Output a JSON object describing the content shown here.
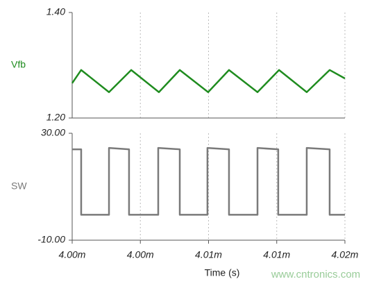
{
  "chart_data": [
    {
      "type": "line",
      "x": [
        4.0,
        4.00066,
        4.0027,
        4.00433,
        4.00636,
        4.00789,
        4.00997,
        4.0115,
        4.01359,
        4.01517,
        4.0172,
        4.01888,
        4.02
      ],
      "series": [
        {
          "name": "Vfb",
          "color": "#1f8c1f",
          "values": [
            1.266,
            1.291,
            1.249,
            1.291,
            1.249,
            1.291,
            1.249,
            1.291,
            1.249,
            1.291,
            1.249,
            1.291,
            1.275
          ]
        }
      ],
      "xlim": [
        4.0,
        4.02
      ],
      "ylim": [
        1.2,
        1.4
      ],
      "yticks": [
        {
          "value": 1.2,
          "label": "1.20"
        },
        {
          "value": 1.4,
          "label": "1.40"
        }
      ],
      "grid": true
    },
    {
      "type": "line",
      "x": [
        4.0,
        4.00066,
        4.00066,
        4.0027,
        4.0027,
        4.00417,
        4.00417,
        4.00631,
        4.00631,
        4.00789,
        4.00789,
        4.00992,
        4.00992,
        4.0115,
        4.0115,
        4.01359,
        4.01359,
        4.01511,
        4.01511,
        4.0172,
        4.0172,
        4.01888,
        4.01888,
        4.02
      ],
      "series": [
        {
          "name": "SW",
          "color": "#7a7a7a",
          "values": [
            24,
            24,
            -0.5,
            -0.5,
            24.5,
            24,
            -0.5,
            -0.5,
            24.5,
            24,
            -0.5,
            -0.5,
            24.5,
            24,
            -0.5,
            -0.5,
            24.5,
            24,
            -0.5,
            -0.5,
            24.5,
            24,
            -0.5,
            -0.5
          ]
        }
      ],
      "xlim": [
        4.0,
        4.02
      ],
      "ylim": [
        -10,
        30
      ],
      "yticks": [
        {
          "value": -10,
          "label": "-10.00"
        },
        {
          "value": 30,
          "label": "30.00"
        }
      ],
      "xticks": [
        {
          "value": 4.0,
          "label": "4.00m"
        },
        {
          "value": 4.005,
          "label": "4.00m"
        },
        {
          "value": 4.01,
          "label": "4.01m"
        },
        {
          "value": 4.015,
          "label": "4.01m"
        },
        {
          "value": 4.02,
          "label": "4.02m"
        }
      ],
      "xlabel": "Time (s)",
      "grid": true
    }
  ],
  "watermark": "www.cntronics.com"
}
